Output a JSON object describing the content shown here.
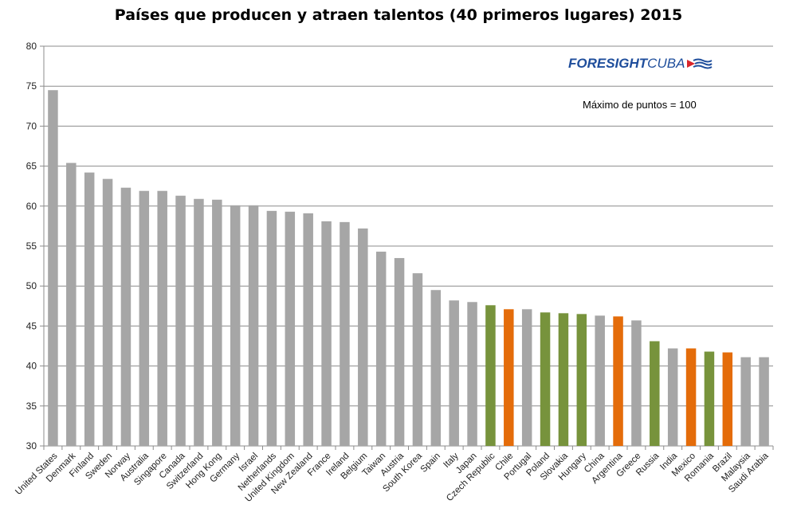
{
  "chart_data": {
    "type": "bar",
    "title": "Países que producen y atraen talentos (40 primeros lugares) 2015",
    "xlabel": "",
    "ylabel": "",
    "ylim": [
      30,
      80
    ],
    "yticks": [
      30,
      35,
      40,
      45,
      50,
      55,
      60,
      65,
      70,
      75,
      80
    ],
    "grid": true,
    "categories": [
      "United States",
      "Denmark",
      "Finland",
      "Sweden",
      "Norway",
      "Australia",
      "Singapore",
      "Canada",
      "Switzerland",
      "Hong Kong",
      "Germany",
      "Israel",
      "Netherlands",
      "United Kingdom",
      "New Zealand",
      "France",
      "Ireland",
      "Belgium",
      "Taiwan",
      "Austria",
      "South Korea",
      "Spain",
      "Italy",
      "Japan",
      "Czech Republic",
      "Chile",
      "Portugal",
      "Poland",
      "Slovakia",
      "Hungary",
      "China",
      "Argentina",
      "Greece",
      "Russia",
      "India",
      "Mexico",
      "Romania",
      "Brazil",
      "Malaysia",
      "Saudi Arabia"
    ],
    "values": [
      74.5,
      65.4,
      64.2,
      63.4,
      62.3,
      61.9,
      61.9,
      61.3,
      60.9,
      60.8,
      60.1,
      60.1,
      59.4,
      59.3,
      59.1,
      58.1,
      58.0,
      57.2,
      54.3,
      53.5,
      51.6,
      49.5,
      48.2,
      48.0,
      47.6,
      47.1,
      47.1,
      46.7,
      46.6,
      46.5,
      46.3,
      46.2,
      45.7,
      43.1,
      42.2,
      42.2,
      41.8,
      41.7,
      41.1,
      41.1
    ],
    "bar_colors": [
      "#a6a6a6",
      "#a6a6a6",
      "#a6a6a6",
      "#a6a6a6",
      "#a6a6a6",
      "#a6a6a6",
      "#a6a6a6",
      "#a6a6a6",
      "#a6a6a6",
      "#a6a6a6",
      "#a6a6a6",
      "#a6a6a6",
      "#a6a6a6",
      "#a6a6a6",
      "#a6a6a6",
      "#a6a6a6",
      "#a6a6a6",
      "#a6a6a6",
      "#a6a6a6",
      "#a6a6a6",
      "#a6a6a6",
      "#a6a6a6",
      "#a6a6a6",
      "#a6a6a6",
      "#77933c",
      "#e46c0a",
      "#a6a6a6",
      "#77933c",
      "#77933c",
      "#77933c",
      "#a6a6a6",
      "#e46c0a",
      "#a6a6a6",
      "#77933c",
      "#a6a6a6",
      "#e46c0a",
      "#77933c",
      "#e46c0a",
      "#a6a6a6",
      "#a6a6a6"
    ],
    "colors": {
      "default": "#a6a6a6",
      "green": "#77933c",
      "orange": "#e46c0a",
      "grid": "#8c8c8c"
    },
    "annotation": "Máximo de puntos = 100"
  },
  "brand": {
    "part1": "FORESIGHT",
    "part2": "CUBA",
    "icon": "flag-waves-icon",
    "color": "#1f4e9c"
  }
}
